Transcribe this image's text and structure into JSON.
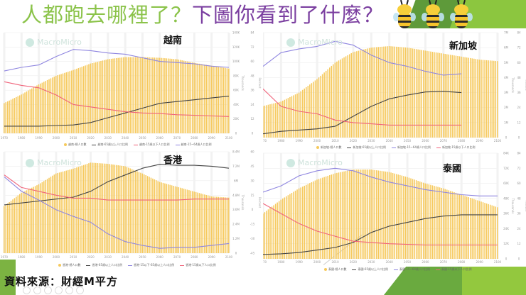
{
  "slide": {
    "title_part1": "人都跑去哪裡了？",
    "title_part2": "下圖你看到了什麼？",
    "decoration": "three-bees-icon",
    "source_label": "資料來源：財經M平方",
    "colors": {
      "title_green": "#8bc34a",
      "title_purple": "#7b3fa0",
      "bar": "#f6c95c",
      "line_65plus": "#444444",
      "line_under15": "#f0637a",
      "line_15_64": "#8f86e0"
    }
  },
  "watermark": "MacroMicro",
  "chart_data": [
    {
      "type": "bar+line",
      "title": "越南",
      "x": [
        1970,
        1980,
        1990,
        2000,
        2010,
        2020,
        2030,
        2040,
        2050,
        2060,
        2070,
        2080,
        2090,
        2100
      ],
      "xticks": [
        "1970",
        "1980",
        "1990",
        "2000",
        "2010",
        "2020",
        "2030",
        "2040",
        "2050",
        "2060",
        "2070",
        "2080",
        "2090",
        "2100"
      ],
      "left_axis": {
        "label": "Thousands",
        "ticks": [
          "140K",
          "120K",
          "100K",
          "80K",
          "60K",
          "40K",
          "20K",
          "0"
        ],
        "range": [
          0,
          140000
        ]
      },
      "right_axis": {
        "label": "Percent",
        "ticks": [
          "84",
          "72",
          "60",
          "48",
          "36",
          "24",
          "12",
          "0"
        ],
        "range": [
          0,
          84
        ]
      },
      "series": [
        {
          "name": "越南-總人口數",
          "kind": "bar",
          "axis": "left",
          "values": [
            42000,
            54000,
            68000,
            80000,
            88000,
            97000,
            103000,
            106000,
            106000,
            105000,
            103000,
            98000,
            94000,
            90000
          ]
        },
        {
          "name": "越南-65歲以上人口比例",
          "kind": "line",
          "axis": "right",
          "color": "#444444",
          "values": [
            6,
            6,
            6,
            6.5,
            7,
            9,
            13,
            17,
            21,
            25,
            26.5,
            28,
            29.5,
            31
          ]
        },
        {
          "name": "越南-15歲以下人口比例",
          "kind": "line",
          "axis": "right",
          "color": "#f0637a",
          "values": [
            43,
            40,
            38,
            32,
            24,
            22,
            20,
            18,
            17,
            16.5,
            15.5,
            15,
            14.5,
            14
          ]
        },
        {
          "name": "越南-15~64歲人口比例",
          "kind": "line",
          "axis": "right",
          "color": "#8f86e0",
          "values": [
            52,
            55,
            57,
            64,
            70,
            69,
            67,
            66,
            63,
            60,
            59,
            58,
            56,
            55
          ]
        }
      ],
      "legend": [
        "越南-總人口數",
        "越南-65歲以上人口比例",
        "越南-15歲以下人口比例",
        "越南-15~64歲人口比例"
      ]
    },
    {
      "type": "bar+line",
      "title": "新加坡",
      "x": [
        1970,
        1980,
        1990,
        2000,
        2010,
        2020,
        2030,
        2040,
        2050,
        2060,
        2070,
        2080,
        2090,
        2100
      ],
      "xticks": [
        "1970",
        "1980",
        "1990",
        "2000",
        "2010",
        "2020",
        "2030",
        "2040",
        "2050",
        "2060",
        "2070",
        "2080",
        "2090",
        "2100"
      ],
      "left_axis": {
        "label": "Thousands",
        "ticks": [
          "7M",
          "6M",
          "5M",
          "4M",
          "3M",
          "2M",
          "1M",
          "0"
        ],
        "range": [
          0,
          7000
        ]
      },
      "right_axis": {
        "label": "Percent",
        "ticks": [
          "84",
          "72",
          "60",
          "48",
          "36",
          "24",
          "12",
          "0"
        ],
        "range": [
          0,
          84
        ]
      },
      "series": [
        {
          "name": "新加坡-總人口數",
          "kind": "bar",
          "axis": "left",
          "values": [
            2100,
            2400,
            3000,
            3900,
            5000,
            5700,
            6000,
            6100,
            6000,
            5800,
            5600,
            5400,
            5200,
            5100
          ]
        },
        {
          "name": "新加坡-65歲以上人口比例",
          "kind": "line",
          "axis": "right",
          "color": "#444444",
          "values": [
            3,
            5,
            6,
            7,
            9,
            17,
            25,
            31,
            34,
            36.5,
            37,
            36
          ]
        },
        {
          "name": "新加坡-15~64歲人口比例",
          "kind": "line",
          "axis": "right",
          "color": "#8f86e0",
          "values": [
            57,
            68,
            71,
            73,
            77,
            74,
            66,
            60,
            57,
            53,
            50,
            51
          ]
        },
        {
          "name": "新加坡-15歲以下人口比例",
          "kind": "line",
          "axis": "right",
          "color": "#f0637a",
          "values": [
            39,
            25,
            21,
            19,
            14,
            12,
            11,
            10,
            10,
            10,
            10,
            10
          ]
        }
      ],
      "line_x_end": 2080,
      "legend": [
        "新加坡-總人口數",
        "新加坡-65歲以上人口比例",
        "新加坡-15~64歲人口比例",
        "新加坡-15歲以下人口比例"
      ]
    },
    {
      "type": "bar+line",
      "title": "香港",
      "x": [
        1970,
        1980,
        1990,
        2000,
        2010,
        2020,
        2030,
        2040,
        2050,
        2060,
        2070,
        2080,
        2090,
        2100
      ],
      "xticks": [
        "1970",
        "1980",
        "1990",
        "2000",
        "2010",
        "2020",
        "2030",
        "2040",
        "2050",
        "2060",
        "2070",
        "2080",
        "2090",
        "2100"
      ],
      "left_axis": {
        "label": "Thousands",
        "ticks": [
          "8.4M",
          "7.2M",
          "6M",
          "4.8M",
          "3.6M",
          "2.4M",
          "1.2M",
          "0"
        ],
        "range": [
          0,
          8400
        ]
      },
      "right_axis": {
        "label": "Percent",
        "ticks": [
          "60",
          "45",
          "30",
          "15",
          "0",
          "-15",
          "-30",
          "-45"
        ],
        "range": [
          -45,
          60
        ]
      },
      "series": [
        {
          "name": "香港-總人口數",
          "kind": "bar",
          "axis": "left",
          "values": [
            3900,
            5000,
            5700,
            6600,
            7000,
            7500,
            7400,
            7200,
            6600,
            5900,
            5500,
            5100,
            4700,
            4600
          ]
        },
        {
          "name": "香港-65歲以上人口比例",
          "kind": "line",
          "axis": "right",
          "color": "#444444",
          "values": [
            5,
            7,
            9,
            11,
            13,
            19,
            29,
            36,
            43,
            47,
            46,
            46,
            45,
            43
          ]
        },
        {
          "name": "香港-15以下-65歲以上人口比例",
          "kind": "line",
          "axis": "right",
          "color": "#8f86e0",
          "values": [
            34,
            19,
            10,
            0,
            -7,
            -13,
            -25,
            -33,
            -37,
            -40,
            -39,
            -39,
            -37,
            -35
          ]
        },
        {
          "name": "香港-15歲以下人口比例",
          "kind": "line",
          "axis": "right",
          "color": "#f0637a",
          "values": [
            36,
            23,
            19,
            15,
            12,
            12,
            10,
            10,
            10,
            10,
            10,
            11,
            11,
            11
          ]
        }
      ],
      "legend": [
        "香港-總人口數",
        "香港-65歲以上人口比例",
        "香港-15以下-65歲以上人口比例",
        "香港-15歲以下人口比例"
      ]
    },
    {
      "type": "bar+line",
      "title": "泰國",
      "x": [
        1970,
        1980,
        1990,
        2000,
        2010,
        2020,
        2030,
        2040,
        2050,
        2060,
        2070,
        2080,
        2090,
        2100
      ],
      "xticks": [
        "1970",
        "1980",
        "1990",
        "2000",
        "2010",
        "2020",
        "2030",
        "2040",
        "2050",
        "2060",
        "2070",
        "2080",
        "2090",
        "2100"
      ],
      "left_axis": {
        "label": "Thousands",
        "ticks": [
          "84K",
          "72K",
          "60K",
          "48K",
          "36K",
          "24K",
          "12K",
          "0"
        ],
        "range": [
          0,
          84000
        ]
      },
      "right_axis": {
        "label": "Percent",
        "ticks": [
          "84",
          "72",
          "60",
          "48",
          "36",
          "24",
          "12",
          "0"
        ],
        "range": [
          0,
          84
        ]
      },
      "series": [
        {
          "name": "泰國-總人口數",
          "kind": "bar",
          "axis": "left",
          "values": [
            36000,
            47000,
            56000,
            63000,
            68000,
            71000,
            71000,
            69000,
            65000,
            60000,
            56000,
            51000,
            46000,
            41000
          ]
        },
        {
          "name": "泰國-65歲以上人口比例",
          "kind": "line",
          "axis": "right",
          "color": "#444444",
          "values": [
            3.5,
            4,
            5,
            7,
            9,
            13,
            21,
            26,
            29,
            32,
            34,
            35,
            35,
            35
          ]
        },
        {
          "name": "泰國-15~64歲人口比例",
          "kind": "line",
          "axis": "right",
          "color": "#8f86e0",
          "values": [
            53,
            58,
            66,
            70,
            72,
            70,
            65,
            61,
            58,
            55,
            53,
            51,
            50,
            50
          ]
        },
        {
          "name": "泰國-15歲以下人口比例",
          "kind": "line",
          "axis": "right",
          "color": "#f0637a",
          "values": [
            44,
            36,
            28,
            22,
            18,
            14,
            13,
            12,
            11.5,
            11,
            11,
            11,
            11,
            11
          ]
        }
      ],
      "legend": [
        "泰國-總人口數",
        "泰國-65歲以上人口比例",
        "泰國-15~64歲人口比例",
        "泰國-15歲以下人口比例"
      ]
    }
  ]
}
